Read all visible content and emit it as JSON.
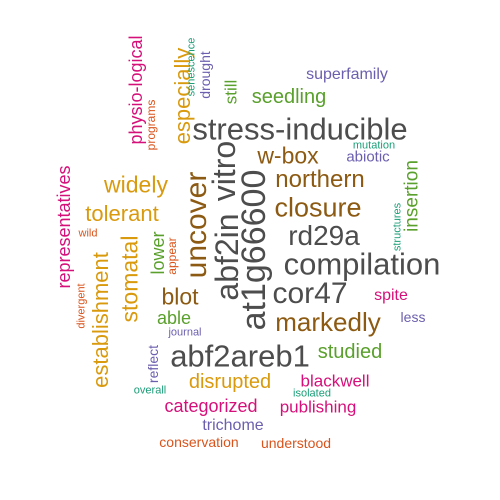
{
  "palette": {
    "gray": "#4d4d4d",
    "brown": "#8c5a12",
    "gold": "#d99a0e",
    "green": "#5aa02c",
    "magenta": "#d6107a",
    "purple": "#6b5fae",
    "orange": "#d9541c",
    "teal": "#1b9e77"
  },
  "words": [
    "stress-inducible",
    "abf2in",
    "vitro",
    "at1g66600",
    "compilation",
    "rd29a",
    "cor47",
    "abf2areb1",
    "uncover",
    "closure",
    "northern",
    "w-box",
    "markedly",
    "widely",
    "tolerant",
    "especially",
    "stomatal",
    "establishment",
    "blot",
    "disrupted",
    "seedling",
    "studied",
    "insertion",
    "physio-logical",
    "representatives",
    "lower",
    "able",
    "categorized",
    "publishing",
    "blackwell",
    "abiotic",
    "still",
    "superfamily",
    "spite",
    "trichome",
    "reflect",
    "conservation",
    "understood",
    "less",
    "drought",
    "senescence",
    "programs",
    "appear",
    "wild",
    "divergent",
    "journal",
    "overall",
    "isolated",
    "mutation",
    "structures"
  ]
}
